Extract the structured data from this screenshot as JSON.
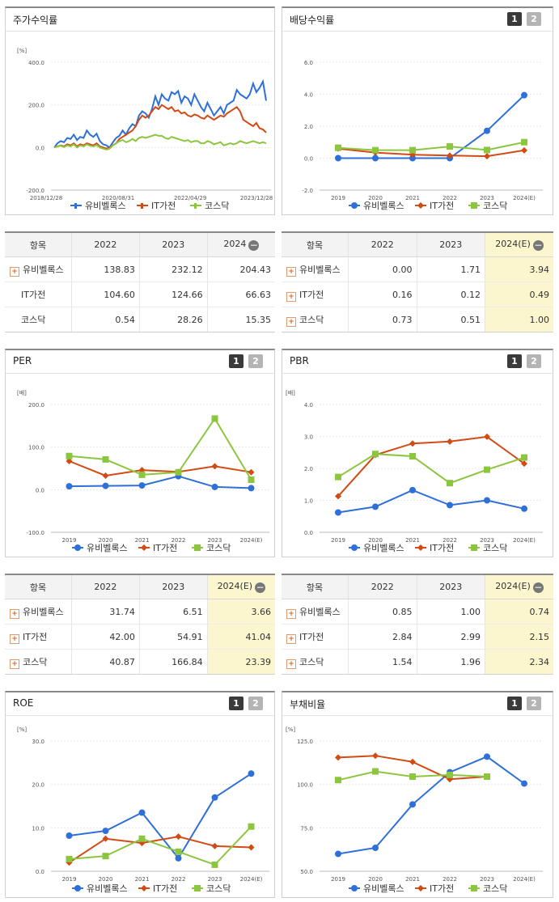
{
  "colors": {
    "s1": "#2e6fd8",
    "s2": "#d24a14",
    "s3": "#8cc63f"
  },
  "legend": [
    "유비벨록스",
    "IT가전",
    "코스닥"
  ],
  "panels": {
    "stock": {
      "title": "주가수익률"
    },
    "dividend": {
      "title": "배당수익률",
      "btn1": "1",
      "btn2": "2"
    },
    "per": {
      "title": "PER",
      "btn1": "1",
      "btn2": "2"
    },
    "pbr": {
      "title": "PBR",
      "btn1": "1",
      "btn2": "2"
    },
    "roe": {
      "title": "ROE",
      "btn1": "1",
      "btn2": "2"
    },
    "debt": {
      "title": "부채비율",
      "btn1": "1",
      "btn2": "2"
    }
  },
  "tables": {
    "stock": {
      "headers": [
        "항목",
        "2022",
        "2023",
        "2024"
      ],
      "rows": [
        {
          "name": "유비벨록스",
          "v": [
            "138.83",
            "232.12",
            "204.43"
          ]
        },
        {
          "name": "IT가전",
          "v": [
            "104.60",
            "124.66",
            "66.63"
          ]
        },
        {
          "name": "코스닥",
          "v": [
            "0.54",
            "28.26",
            "15.35"
          ]
        }
      ]
    },
    "dividend": {
      "headers": [
        "항목",
        "2022",
        "2023",
        "2024(E)"
      ],
      "rows": [
        {
          "name": "유비벨록스",
          "v": [
            "0.00",
            "1.71",
            "3.94"
          ]
        },
        {
          "name": "IT가전",
          "v": [
            "0.16",
            "0.12",
            "0.49"
          ]
        },
        {
          "name": "코스닥",
          "v": [
            "0.73",
            "0.51",
            "1.00"
          ]
        }
      ]
    },
    "per": {
      "headers": [
        "항목",
        "2022",
        "2023",
        "2024(E)"
      ],
      "rows": [
        {
          "name": "유비벨록스",
          "v": [
            "31.74",
            "6.51",
            "3.66"
          ]
        },
        {
          "name": "IT가전",
          "v": [
            "42.00",
            "54.91",
            "41.04"
          ]
        },
        {
          "name": "코스닥",
          "v": [
            "40.87",
            "166.84",
            "23.39"
          ]
        }
      ]
    },
    "pbr": {
      "headers": [
        "항목",
        "2022",
        "2023",
        "2024(E)"
      ],
      "rows": [
        {
          "name": "유비벨록스",
          "v": [
            "0.85",
            "1.00",
            "0.74"
          ]
        },
        {
          "name": "IT가전",
          "v": [
            "2.84",
            "2.99",
            "2.15"
          ]
        },
        {
          "name": "코스닥",
          "v": [
            "1.54",
            "1.96",
            "2.34"
          ]
        }
      ]
    }
  },
  "chart_data": [
    {
      "id": "stock",
      "type": "line",
      "unit": "[%]",
      "ylim": [
        -200,
        400
      ],
      "yticks": [
        "400.0",
        "200.0",
        "0.0",
        "-200.0"
      ],
      "xticks": [
        "2018/12/28",
        "2020/08/31",
        "2022/04/29",
        "2023/12/28"
      ],
      "series": [
        {
          "name": "유비벨록스",
          "values": [
            0,
            20,
            30,
            25,
            45,
            40,
            60,
            35,
            50,
            45,
            80,
            60,
            50,
            65,
            30,
            15,
            10,
            0,
            25,
            45,
            55,
            80,
            60,
            90,
            110,
            100,
            150,
            170,
            160,
            140,
            180,
            240,
            200,
            250,
            230,
            220,
            260,
            250,
            265,
            210,
            240,
            230,
            200,
            250,
            220,
            190,
            170,
            210,
            180,
            150,
            170,
            190,
            160,
            200,
            210,
            220,
            270,
            250,
            240,
            230,
            250,
            300,
            260,
            280,
            310,
            220
          ]
        },
        {
          "name": "IT가전",
          "values": [
            0,
            5,
            10,
            5,
            15,
            10,
            20,
            5,
            15,
            10,
            20,
            15,
            10,
            20,
            5,
            0,
            -5,
            0,
            10,
            20,
            40,
            50,
            60,
            70,
            80,
            100,
            130,
            150,
            140,
            150,
            170,
            190,
            180,
            200,
            190,
            180,
            190,
            170,
            175,
            160,
            165,
            150,
            145,
            155,
            150,
            140,
            135,
            150,
            140,
            130,
            140,
            150,
            145,
            160,
            170,
            180,
            190,
            170,
            130,
            120,
            110,
            100,
            115,
            90,
            85,
            70
          ]
        },
        {
          "name": "코스닥",
          "values": [
            0,
            5,
            8,
            2,
            10,
            5,
            15,
            0,
            10,
            5,
            15,
            8,
            5,
            12,
            0,
            -5,
            -10,
            -5,
            10,
            20,
            30,
            35,
            25,
            30,
            40,
            30,
            45,
            50,
            45,
            50,
            55,
            60,
            55,
            55,
            45,
            40,
            50,
            45,
            40,
            35,
            30,
            35,
            25,
            30,
            30,
            20,
            20,
            30,
            25,
            15,
            20,
            25,
            10,
            15,
            20,
            15,
            20,
            30,
            25,
            20,
            25,
            30,
            25,
            20,
            25,
            20
          ]
        }
      ]
    },
    {
      "id": "dividend",
      "type": "line",
      "unit": "",
      "ylim": [
        -2,
        6
      ],
      "yticks": [
        "6.0",
        "4.0",
        "2.0",
        "0.0",
        "-2.0"
      ],
      "x": [
        "2019",
        "2020",
        "2021",
        "2022",
        "2023",
        "2024(E)"
      ],
      "series": [
        {
          "name": "유비벨록스",
          "values": [
            0.0,
            0.0,
            0.0,
            0.0,
            1.71,
            3.94
          ]
        },
        {
          "name": "IT가전",
          "values": [
            0.6,
            0.35,
            0.22,
            0.16,
            0.12,
            0.49
          ]
        },
        {
          "name": "코스닥",
          "values": [
            0.65,
            0.5,
            0.5,
            0.73,
            0.51,
            1.0
          ]
        }
      ]
    },
    {
      "id": "per",
      "type": "line",
      "unit": "[배]",
      "ylim": [
        -100,
        200
      ],
      "yticks": [
        "200.0",
        "100.0",
        "0.0",
        "-100.0"
      ],
      "x": [
        "2019",
        "2020",
        "2021",
        "2022",
        "2023",
        "2024(E)"
      ],
      "series": [
        {
          "name": "유비벨록스",
          "values": [
            8,
            9,
            10,
            31.74,
            6.51,
            3.66
          ]
        },
        {
          "name": "IT가전",
          "values": [
            67,
            33,
            46,
            42.0,
            54.91,
            41.04
          ]
        },
        {
          "name": "코스닥",
          "values": [
            79,
            71,
            35,
            40.87,
            166.84,
            23.39
          ]
        }
      ]
    },
    {
      "id": "pbr",
      "type": "line",
      "unit": "[배]",
      "ylim": [
        0,
        4
      ],
      "yticks": [
        "4.0",
        "3.0",
        "2.0",
        "1.0",
        "0.0"
      ],
      "x": [
        "2019",
        "2020",
        "2021",
        "2022",
        "2023",
        "2024(E)"
      ],
      "series": [
        {
          "name": "유비벨록스",
          "values": [
            0.62,
            0.8,
            1.32,
            0.85,
            1.0,
            0.74
          ]
        },
        {
          "name": "IT가전",
          "values": [
            1.13,
            2.42,
            2.78,
            2.84,
            2.99,
            2.15
          ]
        },
        {
          "name": "코스닥",
          "values": [
            1.73,
            2.45,
            2.38,
            1.54,
            1.96,
            2.34
          ]
        }
      ]
    },
    {
      "id": "roe",
      "type": "line",
      "unit": "[%]",
      "ylim": [
        0,
        30
      ],
      "yticks": [
        "30.0",
        "20.0",
        "10.0",
        "0.0"
      ],
      "x": [
        "2019",
        "2020",
        "2021",
        "2022",
        "2023",
        "2024(E)"
      ],
      "series": [
        {
          "name": "유비벨록스",
          "values": [
            8.2,
            9.3,
            13.5,
            3.0,
            17.0,
            22.5
          ]
        },
        {
          "name": "IT가전",
          "values": [
            2.0,
            7.5,
            6.5,
            8.0,
            5.8,
            5.5
          ]
        },
        {
          "name": "코스닥",
          "values": [
            2.8,
            3.5,
            7.5,
            4.5,
            1.5,
            10.3
          ]
        }
      ]
    },
    {
      "id": "debt",
      "type": "line",
      "unit": "[%]",
      "ylim": [
        50,
        125
      ],
      "yticks": [
        "125.0",
        "100.0",
        "75.0",
        "50.0"
      ],
      "x": [
        "2019",
        "2020",
        "2021",
        "2022",
        "2023",
        "2024(E)"
      ],
      "series": [
        {
          "name": "유비벨록스",
          "values": [
            60,
            63.5,
            88.5,
            107,
            116,
            100.5
          ]
        },
        {
          "name": "IT가전",
          "values": [
            115.5,
            116.5,
            113,
            103,
            104.5,
            null
          ]
        },
        {
          "name": "코스닥",
          "values": [
            102.5,
            107.5,
            104.5,
            105.5,
            104.5,
            null
          ]
        }
      ]
    }
  ]
}
